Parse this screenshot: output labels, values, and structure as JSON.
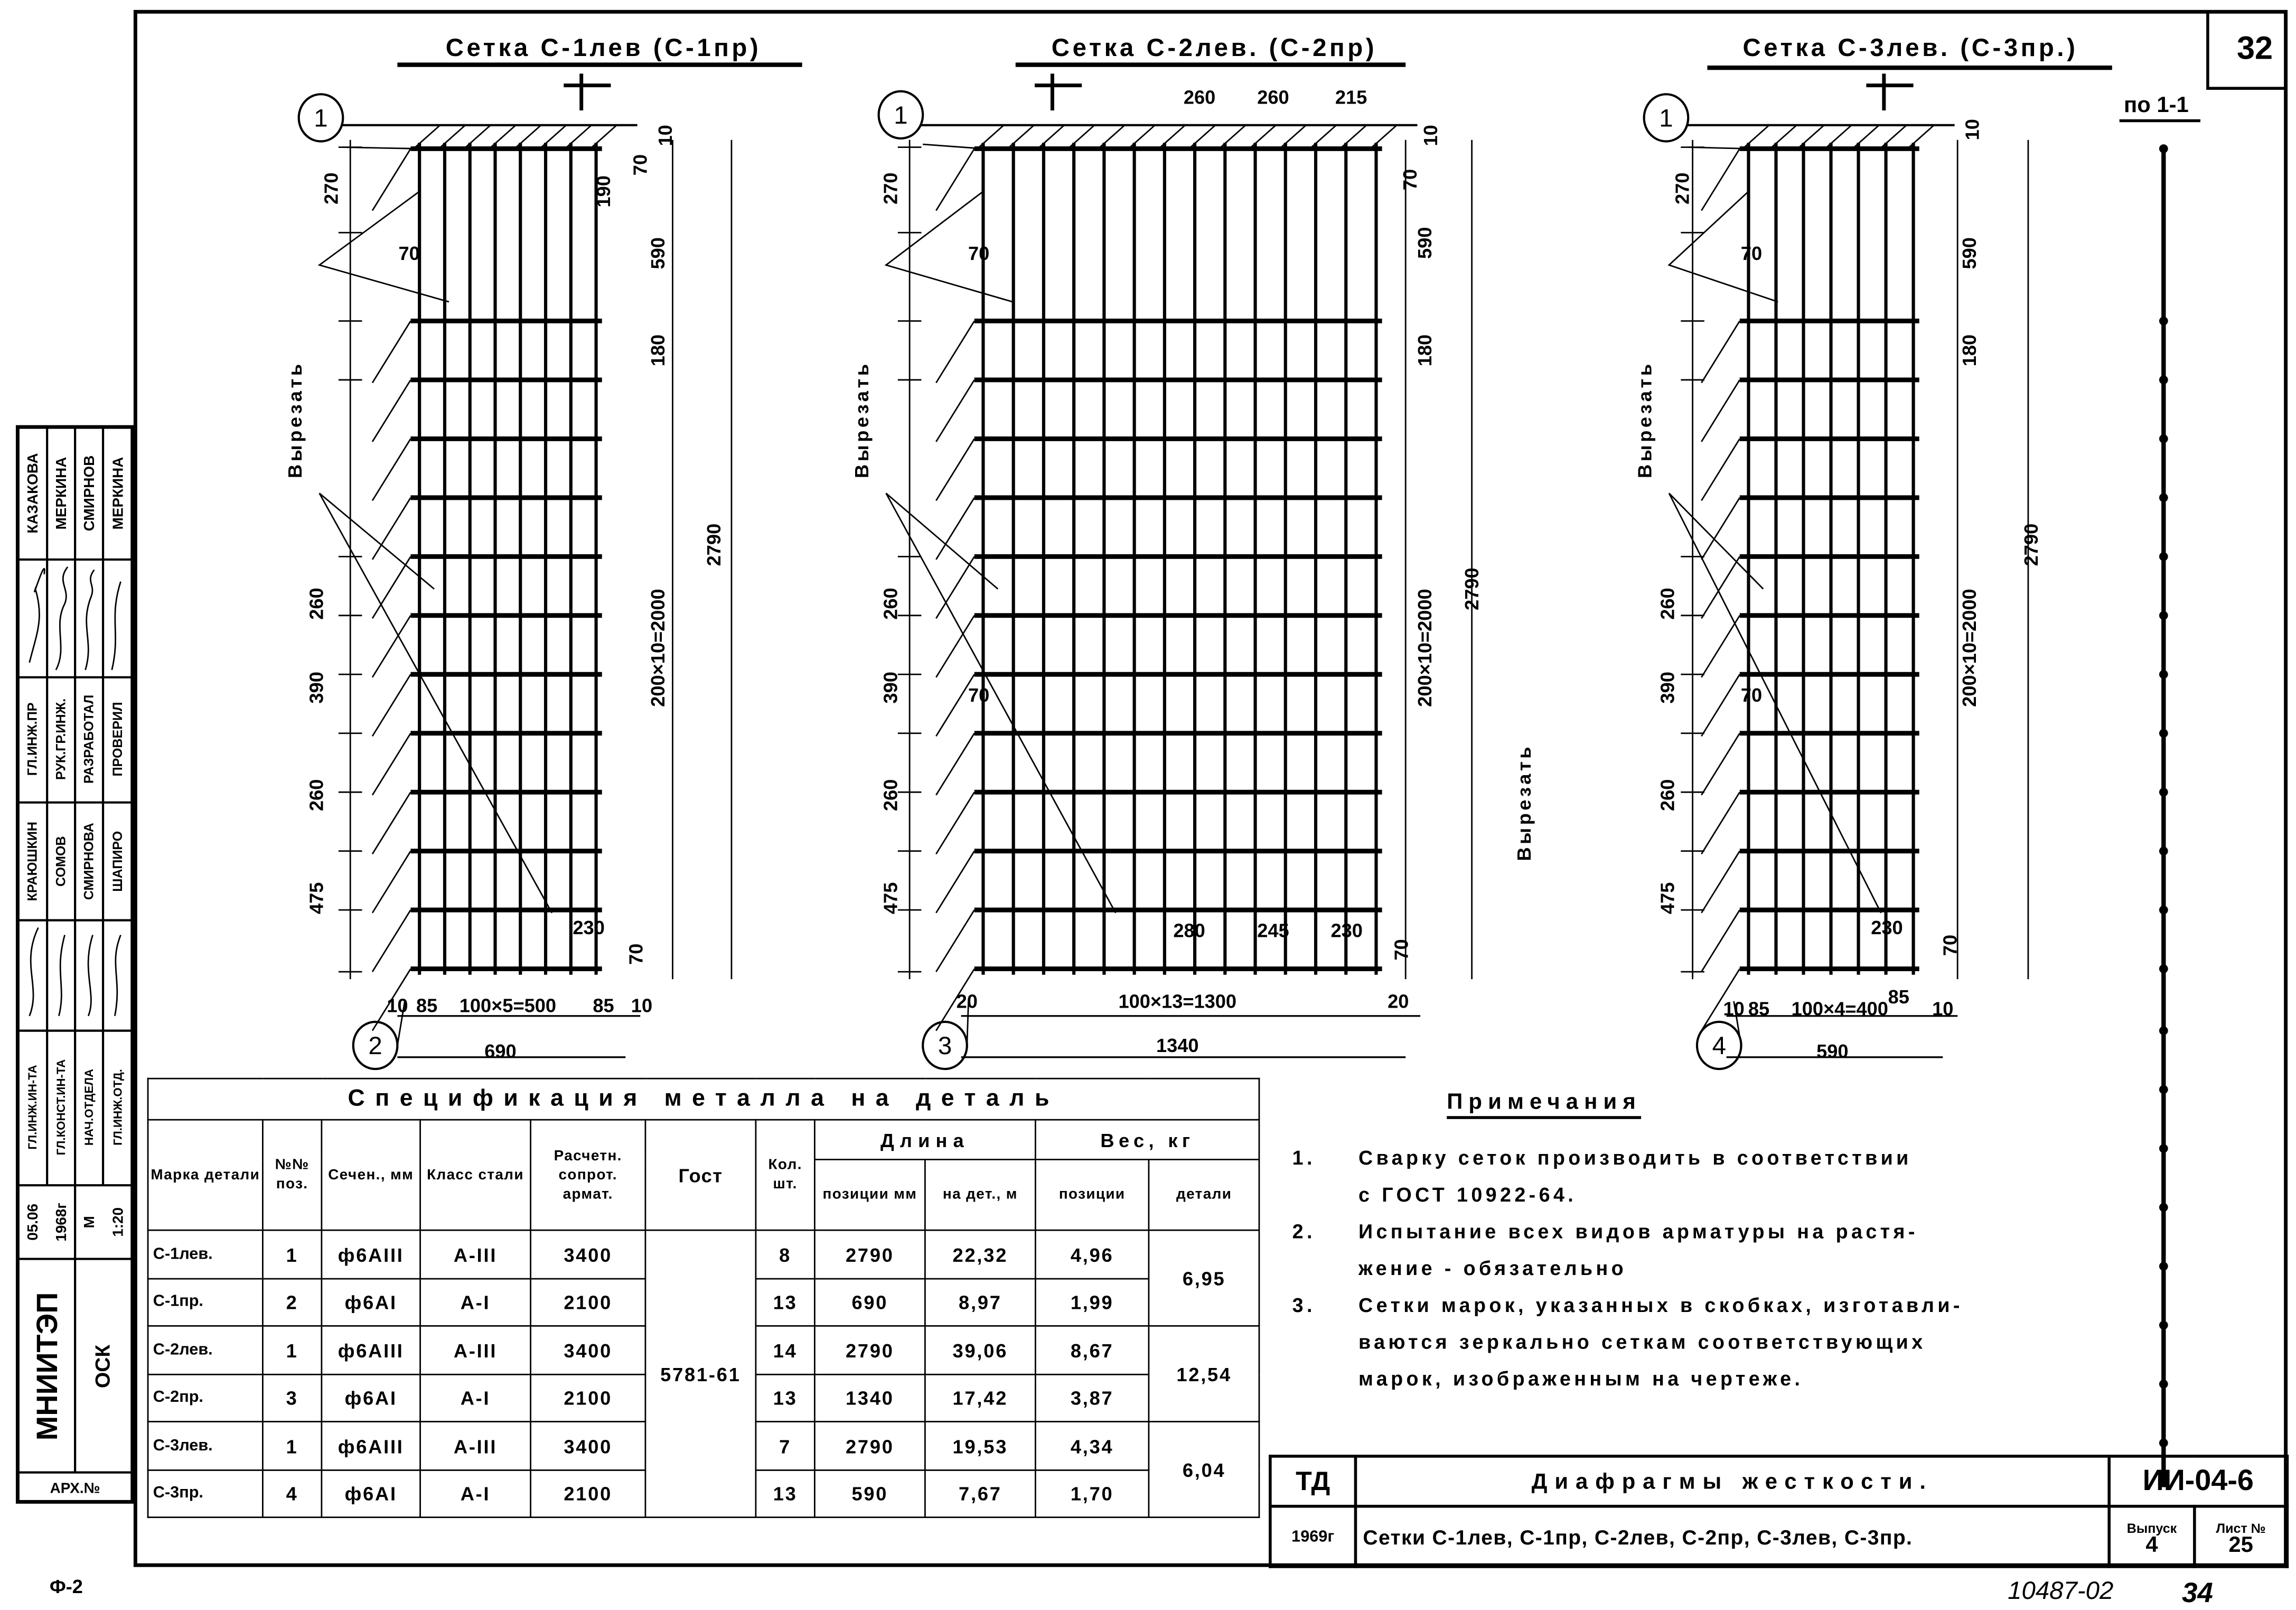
{
  "sheet": {
    "corner_number": "32",
    "section_label": "по 1-1",
    "footer_left": "Ф-2",
    "archive_code": "10487-02",
    "archive_page": "34"
  },
  "meshes": [
    {
      "title": "Сетка С-1лев (С-1пр)",
      "marks": [
        "1",
        "2"
      ],
      "cut_label": "Вырезать",
      "dims": [
        "270",
        "260",
        "390",
        "260",
        "475",
        "10",
        "70",
        "190",
        "590",
        "180",
        "200×10=2000",
        "2790",
        "70",
        "10",
        "85",
        "100×5=500",
        "85",
        "10",
        "690",
        "230",
        "70"
      ]
    },
    {
      "title": "Сетка С-2лев. (С-2пр)",
      "marks": [
        "1",
        "3"
      ],
      "cut_label": "Вырезать",
      "dims": [
        "260",
        "260",
        "215",
        "270",
        "260",
        "390",
        "260",
        "475",
        "10",
        "70",
        "590",
        "180",
        "200×10=2000",
        "2790",
        "70",
        "70",
        "20",
        "100×13=1300",
        "20",
        "1340",
        "280",
        "245",
        "230",
        "70"
      ]
    },
    {
      "title": "Сетка С-3лев. (С-3пр.)",
      "marks": [
        "1",
        "4"
      ],
      "cut_label": "Вырезать",
      "dims": [
        "270",
        "260",
        "390",
        "260",
        "475",
        "10",
        "590",
        "180",
        "200×10=2000",
        "2790",
        "70",
        "70",
        "10",
        "85",
        "100×4=400",
        "85",
        "10",
        "590",
        "230",
        "70"
      ]
    }
  ],
  "spec": {
    "title": "Спецификация металла на деталь",
    "headers": {
      "mark": "Марка детали",
      "pos": "№№ поз.",
      "section": "Сечен., мм",
      "steel": "Класс стали",
      "resist": "Расчетн. сопрот. армат.",
      "gost": "Гост",
      "qty": "Кол. шт.",
      "length": "Длина",
      "len_pos": "позиции мм",
      "len_det": "на дет., м",
      "weight": "Вес, кг",
      "w_pos": "позиции",
      "w_det": "детали"
    },
    "gost_value": "5781-61",
    "rows": [
      {
        "mark": "С-1лев.",
        "pos": "1",
        "section": "ф6АIII",
        "steel": "А-III",
        "resist": "3400",
        "qty": "8",
        "len_pos": "2790",
        "len_det": "22,32",
        "w_pos": "4,96"
      },
      {
        "mark": "С-1пр.",
        "pos": "2",
        "section": "ф6АI",
        "steel": "А-I",
        "resist": "2100",
        "qty": "13",
        "len_pos": "690",
        "len_det": "8,97",
        "w_pos": "1,99"
      },
      {
        "mark": "С-2лев.",
        "pos": "1",
        "section": "ф6АIII",
        "steel": "А-III",
        "resist": "3400",
        "qty": "14",
        "len_pos": "2790",
        "len_det": "39,06",
        "w_pos": "8,67"
      },
      {
        "mark": "С-2пр.",
        "pos": "3",
        "section": "ф6АI",
        "steel": "А-I",
        "resist": "2100",
        "qty": "13",
        "len_pos": "1340",
        "len_det": "17,42",
        "w_pos": "3,87"
      },
      {
        "mark": "С-3лев.",
        "pos": "1",
        "section": "ф6АIII",
        "steel": "А-III",
        "resist": "3400",
        "qty": "7",
        "len_pos": "2790",
        "len_det": "19,53",
        "w_pos": "4,34"
      },
      {
        "mark": "С-3пр.",
        "pos": "4",
        "section": "ф6АI",
        "steel": "А-I",
        "resist": "2100",
        "qty": "13",
        "len_pos": "590",
        "len_det": "7,67",
        "w_pos": "1,70"
      }
    ],
    "detail_weights": [
      "6,95",
      "12,54",
      "6,04"
    ]
  },
  "notes": {
    "heading": "Примечания",
    "items": [
      {
        "num": "1.",
        "lines": [
          "Сварку сеток производить в соответствии",
          "с ГОСТ 10922-64."
        ]
      },
      {
        "num": "2.",
        "lines": [
          "Испытание всех видов арматуры на растя-",
          "жение - обязательно"
        ]
      },
      {
        "num": "3.",
        "lines": [
          "Сетки марок, указанных в скобках, изготавли-",
          "ваются зеркально сеткам соответствующих",
          "марок, изображенным на чертеже."
        ]
      }
    ]
  },
  "title_block": {
    "org_code": "ТД",
    "year": "1969г",
    "subject": "Диафрагмы жесткости.",
    "sheet_title": "Сетки С-1лев, С-1пр, С-2лев, С-2пр, С-3лев, С-3пр.",
    "series": "ИИ-04-6",
    "issue_label": "Выпуск",
    "issue": "4",
    "sheet_label": "Лист №",
    "sheet": "25"
  },
  "stamp": {
    "names_a": [
      "КАЗАКОВА",
      "МЕРКИНА",
      "СМИРНОВ",
      "МЕРКИНА"
    ],
    "roles_a": [
      "ГЛ.ИНЖ.ПР",
      "РУК.ГР.ИНЖ.",
      "РАЗРАБОТАЛ",
      "ПРОВЕРИЛ"
    ],
    "names_b": [
      "КРАЮШКИН",
      "СОМОВ",
      "СМИРНОВА",
      "ШАПИРО"
    ],
    "roles_b": [
      "ГЛ.ИНЖ.ИН-ТА",
      "ГЛ.КОНСТ.ИН-ТА",
      "НАЧ.ОТДЕЛА",
      "ГЛ.ИНЖ.ОТД."
    ],
    "dates": [
      "05.06",
      "1968г",
      "М",
      "1:20"
    ],
    "organization": "МНИИТЭП",
    "department": "ОСК",
    "archive_label": "АРХ.№"
  }
}
